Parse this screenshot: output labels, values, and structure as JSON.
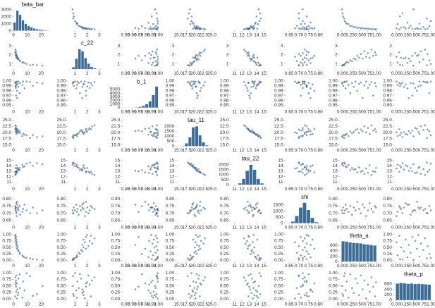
{
  "chart_data": {
    "type": "pairplot",
    "point_color": "#1f4e79",
    "bar_color": "#3d6d96",
    "variables": [
      {
        "name": "beta_bar",
        "xlim": [
          0,
          28
        ],
        "xticks": [
          0,
          10,
          20
        ],
        "samples": [
          21,
          14,
          12,
          8,
          7,
          6.5,
          4.5,
          4.8,
          3.5,
          3.6,
          2.6,
          3.1,
          2.2,
          2.8,
          1.9,
          2.4,
          1.7,
          2.1,
          1.4,
          1.9,
          1.3,
          1.6,
          9.5,
          17
        ],
        "bins": [
          0,
          2,
          4,
          6,
          8,
          10,
          12,
          14,
          16,
          18,
          20,
          22,
          24,
          26,
          28
        ],
        "counts": [
          1200,
          2900,
          2300,
          1500,
          1000,
          700,
          500,
          350,
          250,
          170,
          120,
          80,
          50,
          30
        ],
        "hist_ylim": [
          0,
          3300
        ],
        "hist_yticks": [
          0,
          1000,
          2000,
          3000
        ]
      },
      {
        "name": "c_22",
        "xlim": [
          0.4,
          3.6
        ],
        "xticks": [
          1,
          2,
          3
        ],
        "samples": [
          0.8,
          0.9,
          0.85,
          1.1,
          1.2,
          1.15,
          1.4,
          1.3,
          1.6,
          1.5,
          1.9,
          1.7,
          2.1,
          1.6,
          2.4,
          1.8,
          2.2,
          1.7,
          2.6,
          1.9,
          2.3,
          2.0,
          1.0,
          0.85
        ],
        "bins": [
          0.5,
          0.75,
          1,
          1.25,
          1.5,
          1.75,
          2,
          2.25,
          2.5,
          2.75,
          3,
          3.25,
          3.5
        ],
        "counts": [
          30,
          300,
          1500,
          2900,
          2600,
          1600,
          800,
          350,
          150,
          60,
          20,
          5
        ],
        "hist_ylim": [
          0,
          3300
        ],
        "hist_yticks": []
      },
      {
        "name": "b_1",
        "xlim": [
          0.945,
          1.004
        ],
        "xticks": [
          0.95,
          0.96,
          0.97,
          0.98,
          0.99,
          {
            "value": 1,
            "label": "1.00"
          }
        ],
        "samples": [
          0.995,
          0.99,
          0.998,
          0.985,
          0.999,
          0.992,
          0.975,
          0.996,
          0.988,
          0.999,
          0.98,
          0.994,
          0.997,
          0.965,
          0.991,
          0.999,
          0.986,
          0.993,
          0.998,
          0.97,
          0.996,
          0.989,
          0.999,
          0.997
        ],
        "bins": [
          0.95,
          0.955,
          0.96,
          0.965,
          0.97,
          0.975,
          0.98,
          0.985,
          0.99,
          0.995,
          1
        ],
        "counts": [
          20,
          40,
          80,
          150,
          300,
          550,
          1000,
          1800,
          3500,
          5800
        ],
        "hist_ylim": [
          0,
          6300
        ],
        "hist_yticks": [
          0,
          1000,
          2000,
          3000,
          4000,
          5000
        ]
      },
      {
        "name": "tau_11",
        "xlim": [
          14.5,
          26
        ],
        "xticks": [
          {
            "value": 15,
            "label": "15.0"
          },
          17.5,
          {
            "value": 20,
            "label": "20.0"
          },
          22.5,
          {
            "value": 25,
            "label": "25.0"
          }
        ],
        "samples": [
          18.5,
          19,
          17.8,
          19.2,
          19.5,
          18.6,
          20.5,
          19.8,
          20.2,
          21,
          21.5,
          19.9,
          21.2,
          20.6,
          22.5,
          20.1,
          21.8,
          19.4,
          22.9,
          20.8,
          21.4,
          20.3,
          18.9,
          18.2
        ],
        "bins": [
          15,
          16,
          17,
          18,
          19,
          20,
          21,
          22,
          23,
          24,
          25
        ],
        "counts": [
          10,
          60,
          300,
          900,
          1900,
          2000,
          1100,
          400,
          100,
          20
        ],
        "hist_ylim": [
          0,
          2300
        ],
        "hist_yticks": [
          0,
          500,
          1000,
          1500,
          2000
        ]
      },
      {
        "name": "tau_22",
        "xlim": [
          10.5,
          15.8
        ],
        "xticks": [
          11,
          12,
          13,
          14,
          15
        ],
        "samples": [
          14.3,
          14.0,
          14.6,
          13.9,
          13.8,
          14.2,
          13.2,
          13.6,
          13.3,
          13.4,
          12.8,
          13.7,
          12.9,
          13.1,
          12.5,
          13.5,
          12.7,
          14.1,
          12.3,
          13.0,
          12.9,
          13.6,
          14.4,
          14.5
        ],
        "bins": [
          11,
          11.5,
          12,
          12.5,
          13,
          13.5,
          14,
          14.5,
          15,
          15.5
        ],
        "counts": [
          20,
          150,
          600,
          1400,
          2000,
          1500,
          600,
          150,
          20
        ],
        "hist_ylim": [
          0,
          2300
        ],
        "hist_yticks": [
          0,
          500,
          1000,
          1500,
          2000
        ]
      },
      {
        "name": "chi",
        "xlim": [
          0.63,
          0.83
        ],
        "xticks": [
          0.65,
          {
            "value": 0.7,
            "label": "0.70"
          },
          0.75,
          {
            "value": 0.8,
            "label": "0.80"
          }
        ],
        "samples": [
          0.72,
          0.74,
          0.7,
          0.76,
          0.73,
          0.71,
          0.75,
          0.69,
          0.74,
          0.72,
          0.78,
          0.73,
          0.7,
          0.76,
          0.74,
          0.68,
          0.72,
          0.77,
          0.73,
          0.71,
          0.75,
          0.74,
          0.72,
          0.7
        ],
        "bins": [
          0.64,
          0.66,
          0.68,
          0.7,
          0.72,
          0.74,
          0.76,
          0.78,
          0.8,
          0.82
        ],
        "counts": [
          20,
          150,
          600,
          1300,
          1700,
          1100,
          450,
          100,
          15
        ],
        "hist_ylim": [
          0,
          1900
        ],
        "hist_yticks": [
          0,
          500,
          1000,
          1500
        ]
      },
      {
        "name": "theta_a",
        "xlim": [
          -0.05,
          1.05
        ],
        "xticks": [
          {
            "value": 0,
            "label": "0.00"
          },
          0.25,
          {
            "value": 0.5,
            "label": "0.50"
          },
          0.75,
          {
            "value": 1,
            "label": "1.00"
          }
        ],
        "samples": [
          0.02,
          0.05,
          0.08,
          0.12,
          0.15,
          0.2,
          0.25,
          0.3,
          0.35,
          0.4,
          0.45,
          0.5,
          0.55,
          0.6,
          0.65,
          0.7,
          0.75,
          0.8,
          0.85,
          0.9,
          0.95,
          0.98,
          0.1,
          0.03
        ],
        "bins": [
          0,
          0.1,
          0.2,
          0.3,
          0.4,
          0.5,
          0.6,
          0.7,
          0.8,
          0.9,
          1
        ],
        "counts": [
          760,
          750,
          720,
          700,
          690,
          680,
          650,
          640,
          620,
          600
        ],
        "hist_ylim": [
          0,
          850
        ],
        "hist_yticks": [
          0,
          200,
          400,
          600
        ]
      },
      {
        "name": "theta_p",
        "xlim": [
          -0.05,
          1.05
        ],
        "xticks": [
          {
            "value": 0,
            "label": "0.00"
          },
          0.25,
          {
            "value": 0.5,
            "label": "0.50"
          },
          0.75,
          {
            "value": 1,
            "label": "1.00"
          }
        ],
        "samples": [
          0.5,
          0.12,
          0.88,
          0.33,
          0.67,
          0.05,
          0.95,
          0.42,
          0.23,
          0.78,
          0.6,
          0.15,
          0.9,
          0.37,
          0.71,
          0.02,
          0.55,
          0.28,
          0.83,
          0.47,
          0.1,
          0.64,
          0.99,
          0.19
        ],
        "bins": [
          0,
          0.1,
          0.2,
          0.3,
          0.4,
          0.5,
          0.6,
          0.7,
          0.8,
          0.9,
          1
        ],
        "counts": [
          620,
          640,
          630,
          610,
          620,
          600,
          610,
          600,
          590,
          580
        ],
        "hist_ylim": [
          0,
          850
        ],
        "hist_yticks": [
          0,
          200,
          400,
          600
        ]
      }
    ]
  }
}
